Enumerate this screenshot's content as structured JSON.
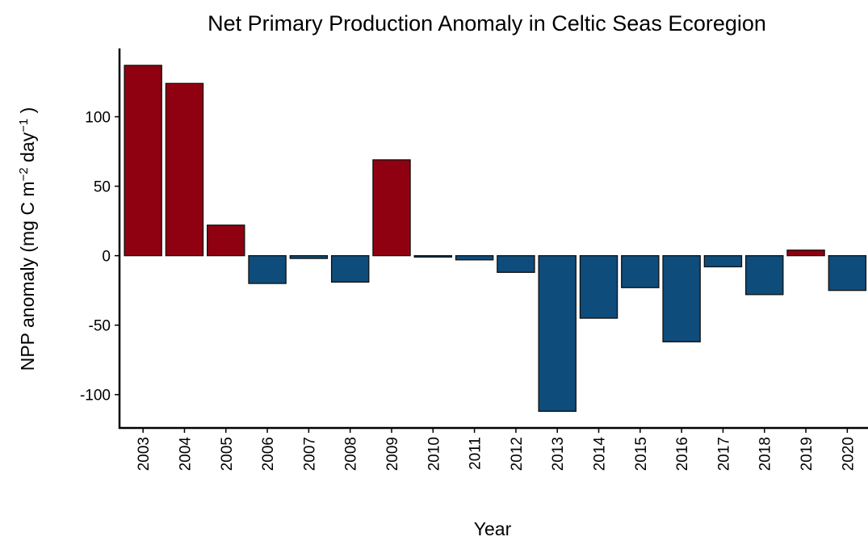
{
  "chart_data": {
    "type": "bar",
    "title": "Net Primary Production Anomaly in Celtic Seas Ecoregion",
    "x_label": "Year",
    "y_label": [
      {
        "text": "NPP anomaly (mg C m"
      },
      {
        "text": "−2",
        "sup": true
      },
      {
        "text": " day"
      },
      {
        "text": "−1",
        "sup": true
      },
      {
        "text": " )"
      }
    ],
    "categories": [
      "2003",
      "2004",
      "2005",
      "2006",
      "2007",
      "2008",
      "2009",
      "2010",
      "2011",
      "2012",
      "2013",
      "2014",
      "2015",
      "2016",
      "2017",
      "2018",
      "2019",
      "2020"
    ],
    "values": [
      137,
      124,
      22,
      -20,
      -2,
      -19,
      69,
      -1,
      -3,
      -12,
      -112,
      -45,
      -23,
      -62,
      -8,
      -28,
      4,
      -25
    ],
    "positive_color": "#8f0010",
    "negative_color": "#0e4c7b",
    "ylim": [
      -124,
      148
    ],
    "yticks": [
      -100,
      -50,
      0,
      50,
      100
    ],
    "grid": false
  }
}
